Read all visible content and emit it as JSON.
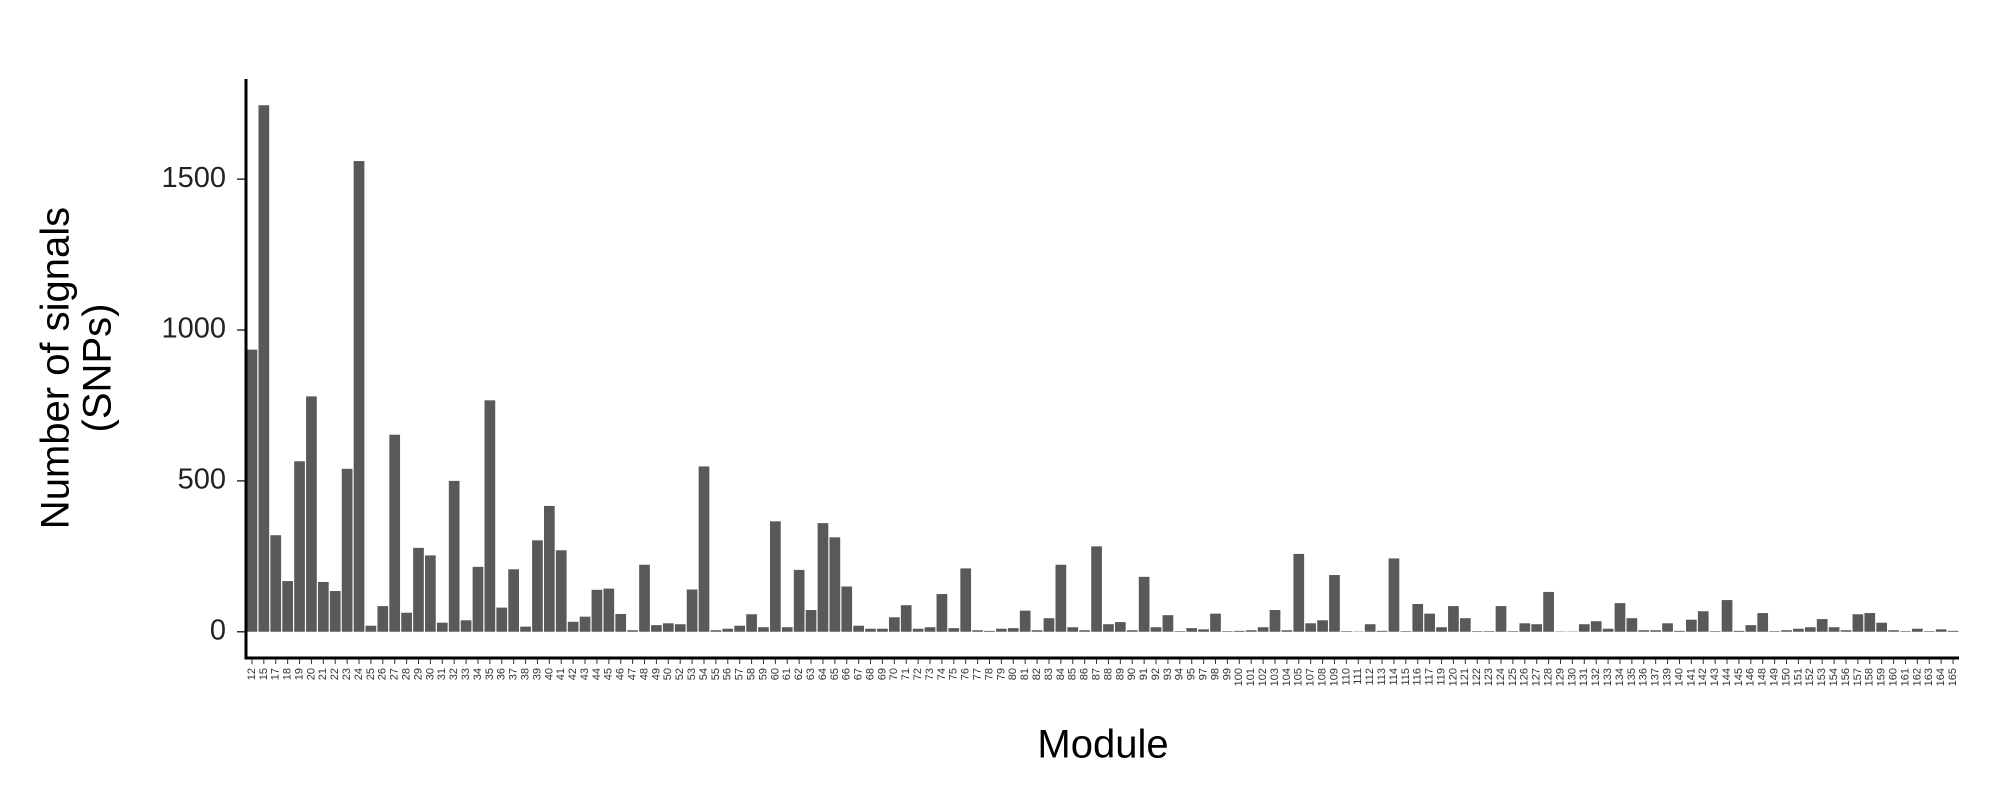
{
  "chart_data": {
    "type": "bar",
    "y_label": [
      "Number of signals",
      "(SNPs)"
    ],
    "x_label": "Module",
    "color": "#595959",
    "categories": [
      "12",
      "15",
      "17",
      "18",
      "19",
      "20",
      "21",
      "22",
      "23",
      "24",
      "25",
      "26",
      "27",
      "28",
      "29",
      "30",
      "31",
      "32",
      "33",
      "34",
      "35",
      "36",
      "37",
      "38",
      "39",
      "40",
      "41",
      "42",
      "43",
      "44",
      "45",
      "46",
      "47",
      "48",
      "49",
      "50",
      "52",
      "53",
      "54",
      "55",
      "56",
      "57",
      "58",
      "59",
      "60",
      "61",
      "62",
      "63",
      "64",
      "65",
      "66",
      "67",
      "68",
      "69",
      "70",
      "71",
      "72",
      "73",
      "74",
      "75",
      "76",
      "77",
      "78",
      "79",
      "80",
      "81",
      "82",
      "83",
      "84",
      "85",
      "86",
      "87",
      "88",
      "89",
      "90",
      "91",
      "92",
      "93",
      "94",
      "95",
      "97",
      "98",
      "99",
      "100",
      "101",
      "102",
      "103",
      "104",
      "105",
      "107",
      "108",
      "109",
      "110",
      "111",
      "112",
      "113",
      "114",
      "115",
      "116",
      "117",
      "119",
      "120",
      "121",
      "122",
      "123",
      "124",
      "125",
      "126",
      "127",
      "128",
      "129",
      "130",
      "131",
      "132",
      "133",
      "134",
      "135",
      "136",
      "137",
      "139",
      "140",
      "141",
      "142",
      "143",
      "144",
      "145",
      "146",
      "148",
      "149",
      "150",
      "151",
      "152",
      "153",
      "154",
      "156",
      "157",
      "158",
      "159",
      "160",
      "161",
      "162",
      "163",
      "164",
      "165"
    ],
    "values": [
      935,
      1745,
      320,
      168,
      565,
      780,
      165,
      135,
      540,
      1560,
      20,
      85,
      653,
      63,
      278,
      253,
      30,
      500,
      38,
      215,
      767,
      80,
      207,
      17,
      303,
      417,
      270,
      33,
      50,
      139,
      143,
      59,
      5,
      222,
      22,
      28,
      25,
      140,
      548,
      5,
      10,
      20,
      58,
      15,
      366,
      15,
      205,
      72,
      360,
      313,
      150,
      20,
      10,
      10,
      48,
      88,
      10,
      15,
      125,
      12,
      210,
      5,
      3,
      10,
      12,
      70,
      5,
      45,
      222,
      15,
      5,
      283,
      25,
      32,
      5,
      182,
      15,
      55,
      2,
      12,
      8,
      60,
      2,
      3,
      5,
      15,
      72,
      5,
      258,
      28,
      38,
      188,
      2,
      1,
      25,
      3,
      243,
      2,
      92,
      60,
      15,
      85,
      45,
      2,
      2,
      85,
      2,
      28,
      25,
      132,
      1,
      1,
      25,
      35,
      10,
      95,
      45,
      5,
      5,
      28,
      3,
      40,
      68,
      2,
      105,
      3,
      22,
      62,
      2,
      5,
      10,
      15,
      42,
      15,
      5,
      58,
      62,
      30,
      5,
      2,
      10,
      2,
      8,
      3
    ],
    "ylim": [
      -87,
      1832
    ],
    "yticks": [
      0,
      500,
      1000,
      1500
    ]
  }
}
